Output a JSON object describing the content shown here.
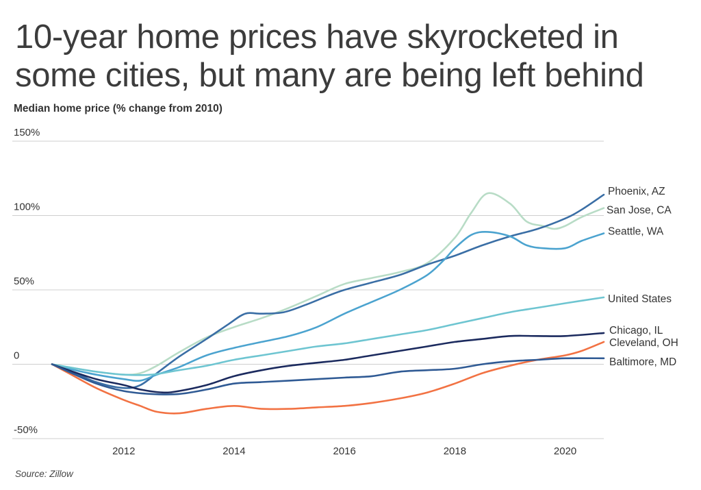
{
  "chart_data": {
    "type": "line",
    "title": "10-year home prices have skyrocketed in some cities, but many are being left behind",
    "subtitle": "Median home price (% change from 2010)",
    "source": "Source: Zillow",
    "x_range": [
      2010.7,
      2020.7
    ],
    "ylim": [
      -50,
      150
    ],
    "grid": "horizontal",
    "y_ticks": [
      {
        "value": 150,
        "label": "150%"
      },
      {
        "value": 100,
        "label": "100%"
      },
      {
        "value": 50,
        "label": "50%"
      },
      {
        "value": 0,
        "label": "0"
      },
      {
        "value": -50,
        "label": "-50%"
      }
    ],
    "x_ticks": [
      {
        "value": 2012,
        "label": "2012"
      },
      {
        "value": 2014,
        "label": "2014"
      },
      {
        "value": 2016,
        "label": "2016"
      },
      {
        "value": 2018,
        "label": "2018"
      },
      {
        "value": 2020,
        "label": "2020"
      }
    ],
    "series": [
      {
        "name": "San Jose, CA",
        "color": "#b8dcc6",
        "points": [
          [
            2010.7,
            0
          ],
          [
            2011.0,
            -2
          ],
          [
            2011.5,
            -5
          ],
          [
            2012.0,
            -7
          ],
          [
            2012.3,
            -6
          ],
          [
            2012.6,
            -1
          ],
          [
            2013.0,
            8
          ],
          [
            2013.5,
            18
          ],
          [
            2014.0,
            25
          ],
          [
            2014.5,
            31
          ],
          [
            2015.0,
            38
          ],
          [
            2015.5,
            46
          ],
          [
            2016.0,
            54
          ],
          [
            2016.5,
            58
          ],
          [
            2017.0,
            62
          ],
          [
            2017.5,
            68
          ],
          [
            2018.0,
            85
          ],
          [
            2018.3,
            102
          ],
          [
            2018.6,
            115
          ],
          [
            2019.0,
            108
          ],
          [
            2019.3,
            96
          ],
          [
            2019.6,
            93
          ],
          [
            2019.8,
            91
          ],
          [
            2020.0,
            93
          ],
          [
            2020.3,
            99
          ],
          [
            2020.7,
            105
          ]
        ]
      },
      {
        "name": "Phoenix, AZ",
        "color": "#3a6ea5",
        "points": [
          [
            2010.7,
            0
          ],
          [
            2011.0,
            -4
          ],
          [
            2011.5,
            -12
          ],
          [
            2012.0,
            -16
          ],
          [
            2012.3,
            -14
          ],
          [
            2012.6,
            -6
          ],
          [
            2013.0,
            5
          ],
          [
            2013.5,
            17
          ],
          [
            2013.9,
            27
          ],
          [
            2014.2,
            34
          ],
          [
            2014.5,
            34
          ],
          [
            2014.9,
            35
          ],
          [
            2015.3,
            40
          ],
          [
            2015.7,
            46
          ],
          [
            2016.0,
            50
          ],
          [
            2016.5,
            55
          ],
          [
            2017.0,
            60
          ],
          [
            2017.5,
            67
          ],
          [
            2018.0,
            73
          ],
          [
            2018.5,
            80
          ],
          [
            2019.0,
            86
          ],
          [
            2019.5,
            91
          ],
          [
            2020.0,
            98
          ],
          [
            2020.3,
            104
          ],
          [
            2020.7,
            114
          ]
        ]
      },
      {
        "name": "Seattle, WA",
        "color": "#4ba3cf",
        "points": [
          [
            2010.7,
            0
          ],
          [
            2011.0,
            -3
          ],
          [
            2011.5,
            -7
          ],
          [
            2012.0,
            -10
          ],
          [
            2012.3,
            -11
          ],
          [
            2012.6,
            -7
          ],
          [
            2013.0,
            -2
          ],
          [
            2013.5,
            6
          ],
          [
            2014.0,
            11
          ],
          [
            2014.5,
            15
          ],
          [
            2015.0,
            19
          ],
          [
            2015.5,
            25
          ],
          [
            2016.0,
            34
          ],
          [
            2016.5,
            42
          ],
          [
            2017.0,
            50
          ],
          [
            2017.5,
            60
          ],
          [
            2017.8,
            70
          ],
          [
            2018.0,
            78
          ],
          [
            2018.3,
            87
          ],
          [
            2018.6,
            89
          ],
          [
            2019.0,
            86
          ],
          [
            2019.3,
            80
          ],
          [
            2019.6,
            78
          ],
          [
            2020.0,
            78
          ],
          [
            2020.3,
            83
          ],
          [
            2020.7,
            88
          ]
        ]
      },
      {
        "name": "United States",
        "color": "#6ec5d1",
        "points": [
          [
            2010.7,
            0
          ],
          [
            2011.0,
            -2
          ],
          [
            2011.5,
            -5
          ],
          [
            2012.0,
            -7
          ],
          [
            2012.5,
            -7
          ],
          [
            2013.0,
            -4
          ],
          [
            2013.5,
            -1
          ],
          [
            2014.0,
            3
          ],
          [
            2014.5,
            6
          ],
          [
            2015.0,
            9
          ],
          [
            2015.5,
            12
          ],
          [
            2016.0,
            14
          ],
          [
            2016.5,
            17
          ],
          [
            2017.0,
            20
          ],
          [
            2017.5,
            23
          ],
          [
            2018.0,
            27
          ],
          [
            2018.5,
            31
          ],
          [
            2019.0,
            35
          ],
          [
            2019.5,
            38
          ],
          [
            2020.0,
            41
          ],
          [
            2020.7,
            45
          ]
        ]
      },
      {
        "name": "Chicago, IL",
        "color": "#1b2a5e",
        "points": [
          [
            2010.7,
            0
          ],
          [
            2011.0,
            -4
          ],
          [
            2011.5,
            -10
          ],
          [
            2012.0,
            -14
          ],
          [
            2012.3,
            -17
          ],
          [
            2012.7,
            -19
          ],
          [
            2013.0,
            -18
          ],
          [
            2013.5,
            -14
          ],
          [
            2014.0,
            -8
          ],
          [
            2014.5,
            -4
          ],
          [
            2015.0,
            -1
          ],
          [
            2015.5,
            1
          ],
          [
            2016.0,
            3
          ],
          [
            2016.5,
            6
          ],
          [
            2017.0,
            9
          ],
          [
            2017.5,
            12
          ],
          [
            2018.0,
            15
          ],
          [
            2018.5,
            17
          ],
          [
            2019.0,
            19
          ],
          [
            2019.5,
            19
          ],
          [
            2020.0,
            19
          ],
          [
            2020.7,
            21
          ]
        ]
      },
      {
        "name": "Cleveland, OH",
        "color": "#f27243",
        "points": [
          [
            2010.7,
            0
          ],
          [
            2011.0,
            -6
          ],
          [
            2011.5,
            -16
          ],
          [
            2012.0,
            -24
          ],
          [
            2012.3,
            -28
          ],
          [
            2012.6,
            -32
          ],
          [
            2013.0,
            -33
          ],
          [
            2013.5,
            -30
          ],
          [
            2014.0,
            -28
          ],
          [
            2014.5,
            -30
          ],
          [
            2015.0,
            -30
          ],
          [
            2015.5,
            -29
          ],
          [
            2016.0,
            -28
          ],
          [
            2016.5,
            -26
          ],
          [
            2017.0,
            -23
          ],
          [
            2017.5,
            -19
          ],
          [
            2018.0,
            -13
          ],
          [
            2018.5,
            -6
          ],
          [
            2019.0,
            -1
          ],
          [
            2019.5,
            3
          ],
          [
            2020.0,
            6
          ],
          [
            2020.3,
            9
          ],
          [
            2020.7,
            15
          ]
        ]
      },
      {
        "name": "Baltimore, MD",
        "color": "#2f5a94",
        "points": [
          [
            2010.7,
            0
          ],
          [
            2011.0,
            -5
          ],
          [
            2011.5,
            -13
          ],
          [
            2012.0,
            -18
          ],
          [
            2012.5,
            -20
          ],
          [
            2013.0,
            -20
          ],
          [
            2013.5,
            -17
          ],
          [
            2014.0,
            -13
          ],
          [
            2014.5,
            -12
          ],
          [
            2015.0,
            -11
          ],
          [
            2015.5,
            -10
          ],
          [
            2016.0,
            -9
          ],
          [
            2016.5,
            -8
          ],
          [
            2017.0,
            -5
          ],
          [
            2017.5,
            -4
          ],
          [
            2018.0,
            -3
          ],
          [
            2018.5,
            0
          ],
          [
            2019.0,
            2
          ],
          [
            2019.5,
            3
          ],
          [
            2020.0,
            4
          ],
          [
            2020.7,
            4
          ]
        ]
      }
    ]
  }
}
